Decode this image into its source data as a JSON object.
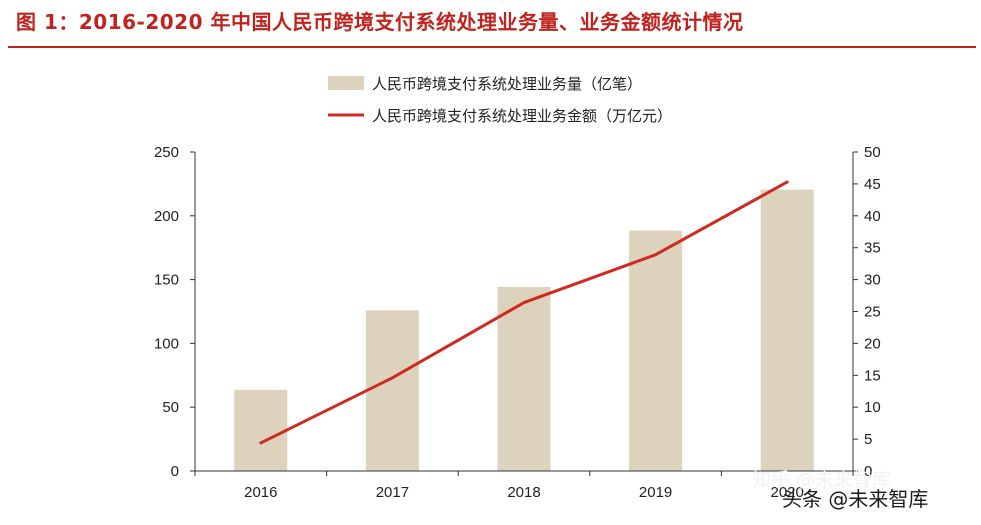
{
  "figure_title": "图 1：2016-2020 年中国人民币跨境支付系统处理业务量、业务金额统计情况",
  "watermark": {
    "text_light": "知乎 @未来智库",
    "text_dark": "头条 @未来智库"
  },
  "colors": {
    "title": "#c0231e",
    "bar": "#ddd3bd",
    "line": "#d0291f",
    "axis": "#333333"
  },
  "chart_data": {
    "type": "bar",
    "categories": [
      "2016",
      "2017",
      "2018",
      "2019",
      "2020"
    ],
    "series": [
      {
        "name": "人民币跨境支付系统处理业务量（亿笔）",
        "type": "bar",
        "axis": "left",
        "values": [
          63.6,
          125.9,
          144.2,
          188.4,
          220.5
        ]
      },
      {
        "name": "人民币跨境支付系统处理业务金额（万亿元）",
        "type": "line",
        "axis": "right",
        "values": [
          4.4,
          14.6,
          26.4,
          33.9,
          45.3
        ]
      }
    ],
    "y_left": {
      "min": 0,
      "max": 250,
      "ticks": [
        "0",
        "50",
        "100",
        "150",
        "200",
        "250"
      ]
    },
    "y_right": {
      "min": 0,
      "max": 50,
      "ticks": [
        "0",
        "5",
        "10",
        "15",
        "20",
        "25",
        "30",
        "35",
        "40",
        "45",
        "50"
      ]
    },
    "legend": "top-center",
    "grid": false
  }
}
